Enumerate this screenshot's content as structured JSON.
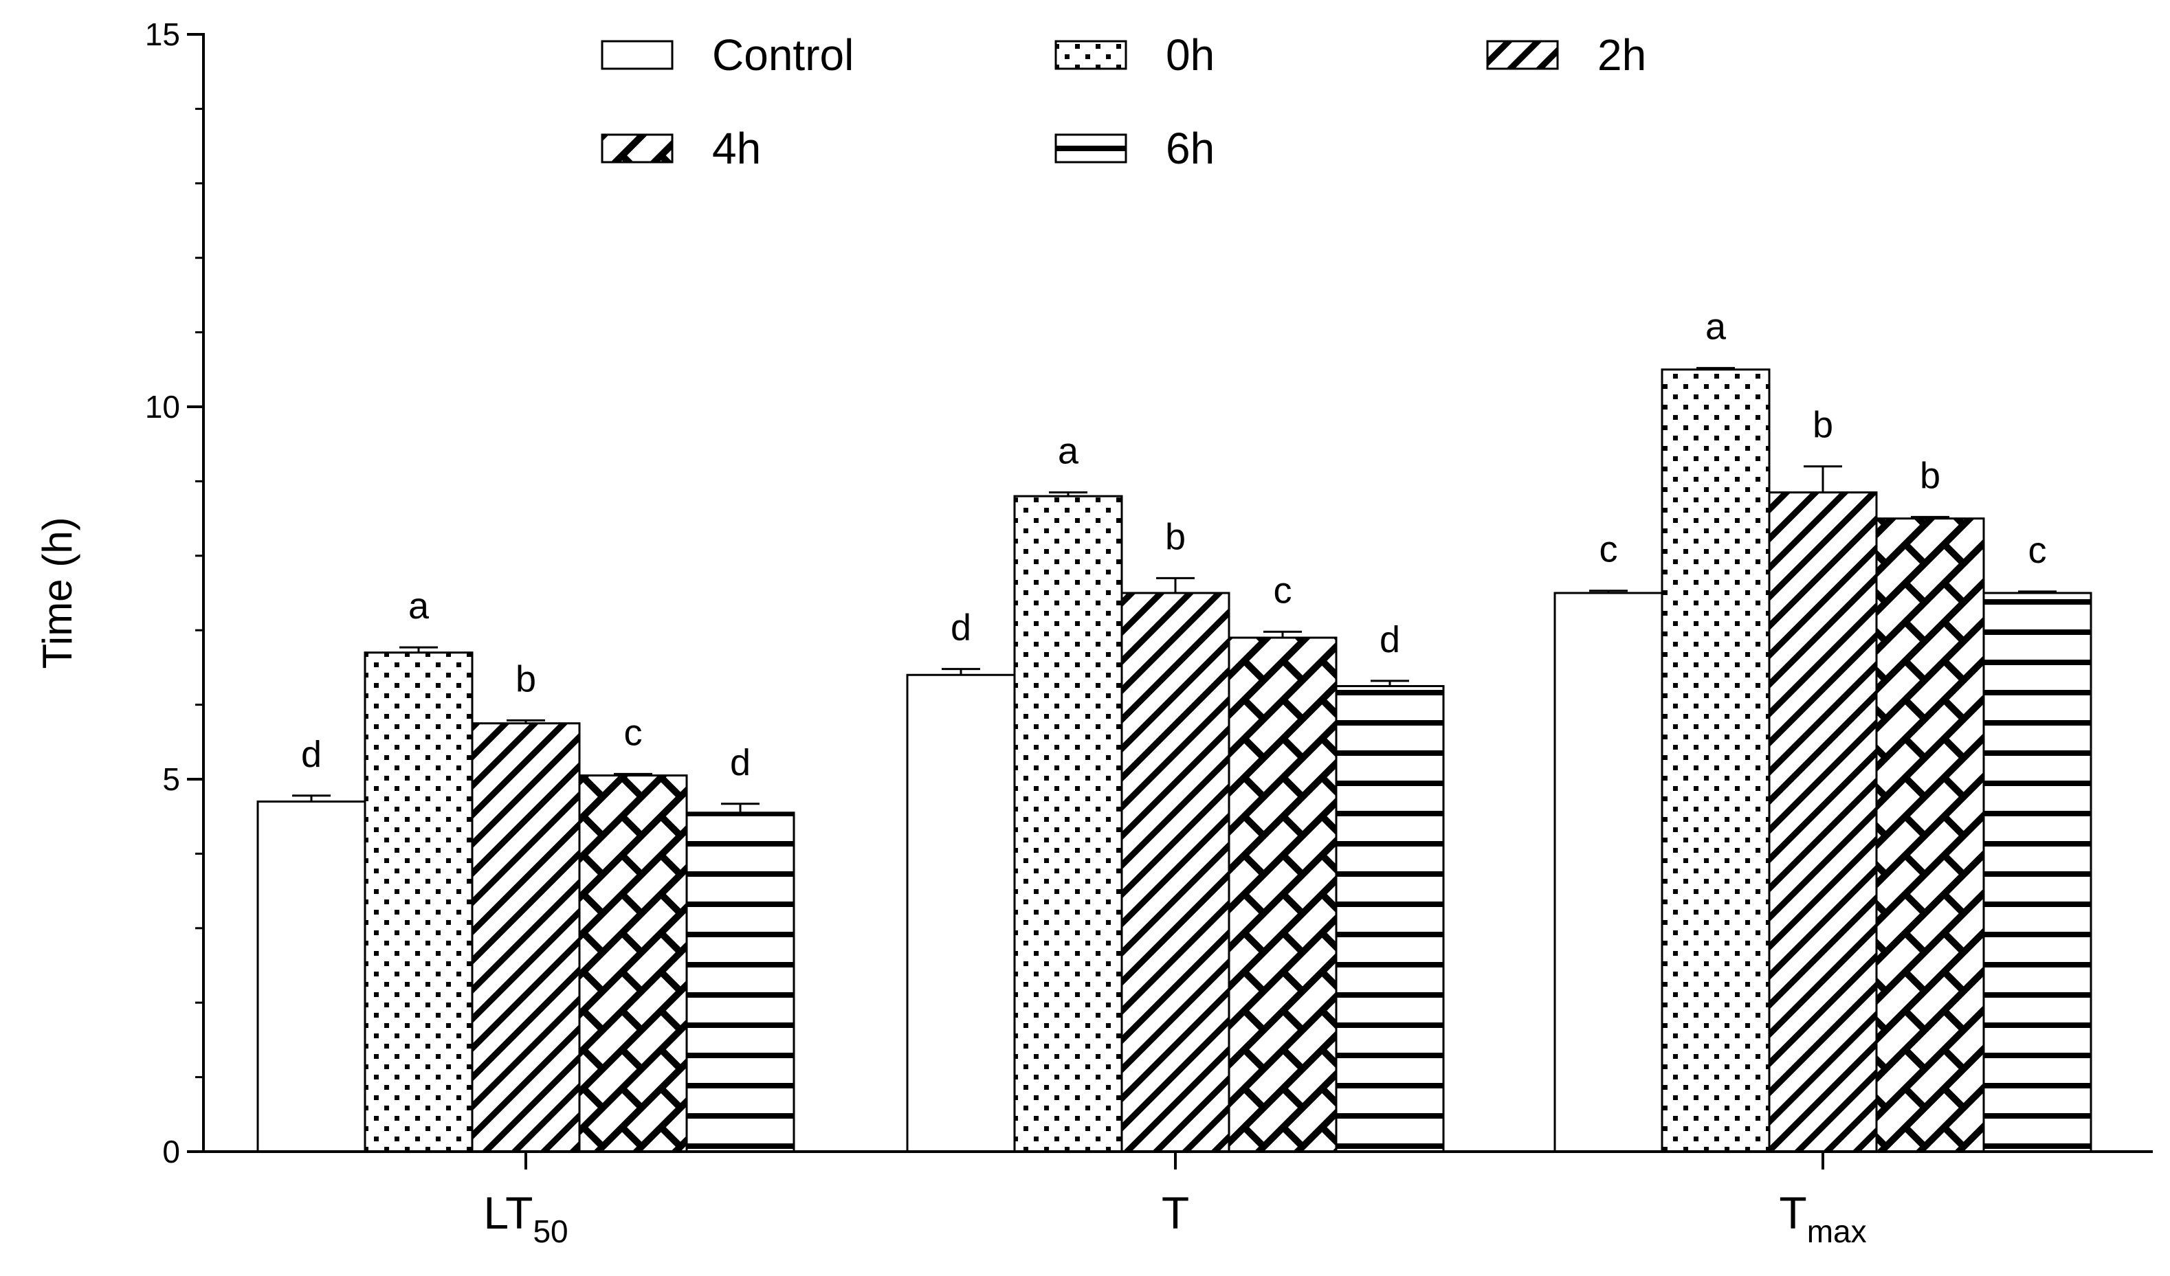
{
  "chart_data": {
    "type": "bar",
    "title": "",
    "xlabel": "",
    "ylabel": "Time (h)",
    "ylim": [
      0,
      15
    ],
    "yticks": [
      0,
      5,
      10,
      15
    ],
    "grid": false,
    "legend_position": "top",
    "categories": [
      {
        "main": "LT",
        "sub": "50"
      },
      {
        "main": "T",
        "sub": ""
      },
      {
        "main": "T",
        "sub": "max"
      }
    ],
    "series": [
      {
        "name": "Control",
        "pattern": "none",
        "values": [
          4.7,
          6.4,
          7.5
        ],
        "errors": [
          0.08,
          0.08,
          0.03
        ],
        "letters": [
          "d",
          "d",
          "c"
        ]
      },
      {
        "name": "0h",
        "pattern": "dots",
        "values": [
          6.7,
          8.8,
          10.5
        ],
        "errors": [
          0.07,
          0.05,
          0.02
        ],
        "letters": [
          "a",
          "a",
          "a"
        ]
      },
      {
        "name": "2h",
        "pattern": "diagonal",
        "values": [
          5.75,
          7.5,
          8.85
        ],
        "errors": [
          0.04,
          0.2,
          0.35
        ],
        "letters": [
          "b",
          "b",
          "b"
        ]
      },
      {
        "name": "4h",
        "pattern": "weave",
        "values": [
          5.05,
          6.9,
          8.5
        ],
        "errors": [
          0.02,
          0.08,
          0.02
        ],
        "letters": [
          "c",
          "c",
          "b"
        ]
      },
      {
        "name": "6h",
        "pattern": "hstripes",
        "values": [
          4.55,
          6.25,
          7.5
        ],
        "errors": [
          0.12,
          0.07,
          0.02
        ],
        "letters": [
          "d",
          "d",
          "c"
        ]
      }
    ]
  }
}
